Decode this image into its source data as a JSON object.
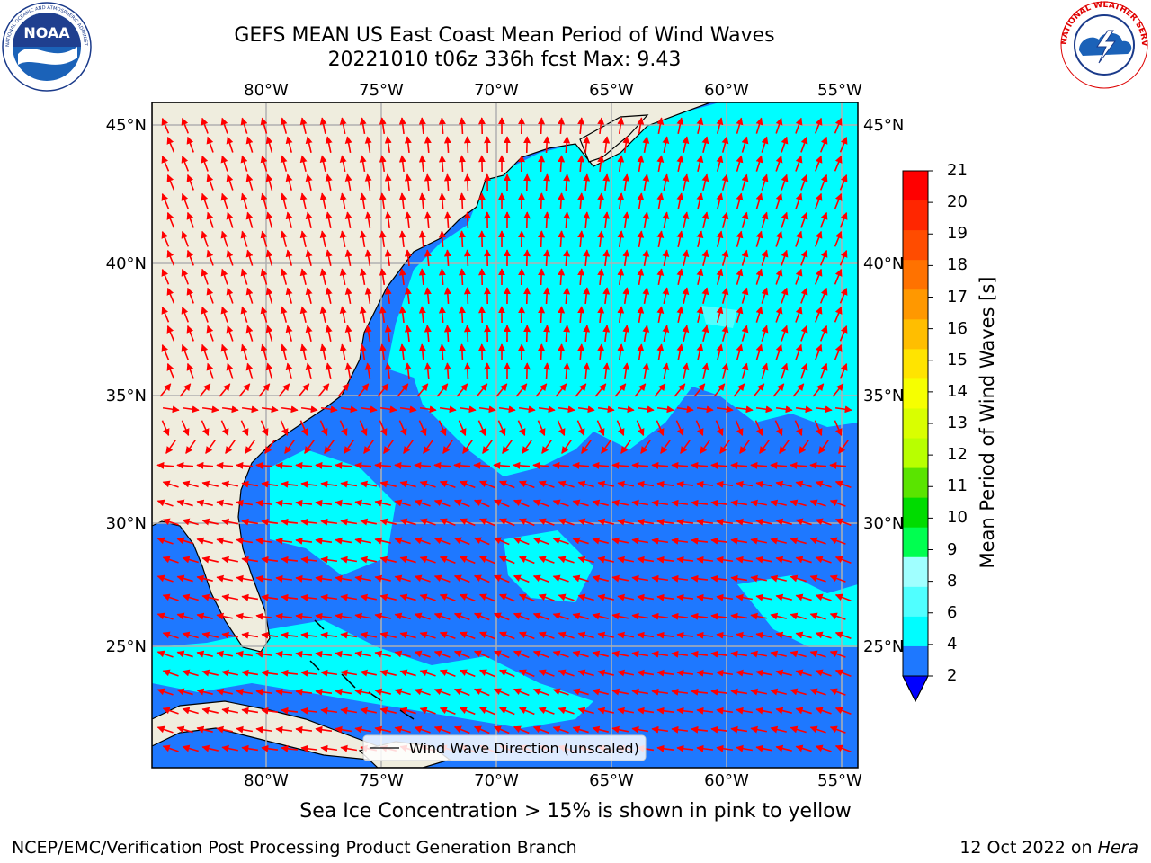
{
  "title": {
    "line1": "GEFS MEAN US East Coast Mean Period of Wind Waves",
    "line2": "20221010 t06z 336h fcst   Max: 9.43"
  },
  "logos": {
    "left": "noaa-logo",
    "left_text": "NOAA",
    "left_ring_text": "NATIONAL OCEANIC AND ATMOSPHERIC ADMINISTRATION · U.S. DEPARTMENT OF COMMERCE",
    "right": "nws-logo",
    "right_ring_text": "NATIONAL WEATHER SERVICE"
  },
  "map": {
    "lon_labels": [
      "80°W",
      "75°W",
      "70°W",
      "65°W",
      "60°W",
      "55°W"
    ],
    "lat_labels": [
      "45°N",
      "40°N",
      "35°N",
      "30°N",
      "25°N"
    ],
    "legend_text": "Wind Wave Direction (unscaled)",
    "colors": {
      "land": "#efedde",
      "low_band": "#1e78ff",
      "mid_band": "#00fdff",
      "light_band": "#50ffff",
      "arrow": "#ff0000",
      "grid": "#b0b0b0"
    }
  },
  "colorbar": {
    "label": "Mean Period of Wind Waves [s]",
    "ticks": [
      "21",
      "20",
      "19",
      "18",
      "17",
      "16",
      "15",
      "14",
      "13",
      "12",
      "11",
      "10",
      "9",
      "8",
      "6",
      "4",
      "2"
    ],
    "colors": [
      "#ff0000",
      "#ff2600",
      "#ff4c00",
      "#ff7200",
      "#ff9800",
      "#ffbe00",
      "#ffe400",
      "#f6ff00",
      "#d9ff00",
      "#b8ff00",
      "#5ae400",
      "#00dc00",
      "#00ff50",
      "#a0ffff",
      "#50ffff",
      "#00fdff",
      "#1e78ff"
    ],
    "extend_color": "#0000ff"
  },
  "captions": {
    "ice_note": "Sea Ice Concentration > 15% is shown in pink to yellow",
    "footer_left": "NCEP/EMC/Verification Post Processing Product Generation Branch",
    "footer_date": "12 Oct 2022 on ",
    "footer_host": "Hera"
  }
}
